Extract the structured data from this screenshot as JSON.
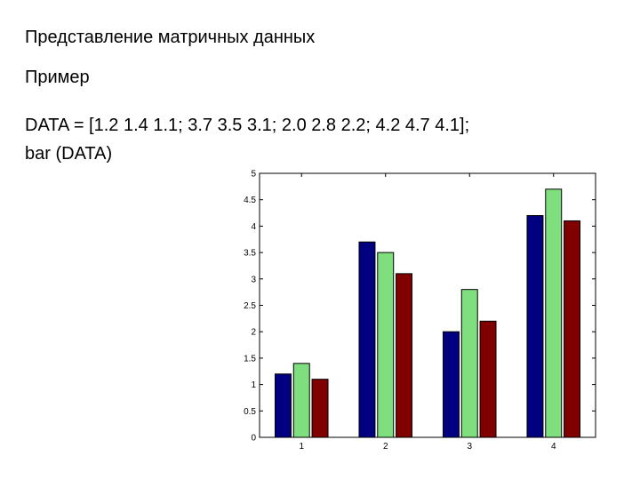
{
  "slide": {
    "title": "Представление матричных данных",
    "subtitle": "Пример",
    "code_line_1": "DATA = [1.2 1.4 1.1; 3.7 3.5 3.1; 2.0 2.8 2.2; 4.2 4.7 4.1];",
    "code_line_2": "bar (DATA)"
  },
  "chart_data": {
    "type": "bar",
    "categories": [
      "1",
      "2",
      "3",
      "4"
    ],
    "series": [
      {
        "values": [
          1.2,
          3.7,
          2.0,
          4.2
        ],
        "color": "#000080"
      },
      {
        "values": [
          1.4,
          3.5,
          2.8,
          4.7
        ],
        "color": "#7fdf7f"
      },
      {
        "values": [
          1.1,
          3.1,
          2.2,
          4.1
        ],
        "color": "#800000"
      }
    ],
    "title": "",
    "xlabel": "",
    "ylabel": "",
    "ylim": [
      0,
      5
    ],
    "yticks": [
      "0",
      "0.5",
      "1",
      "1.5",
      "2",
      "2.5",
      "3",
      "3.5",
      "4",
      "4.5",
      "5"
    ],
    "grid": false,
    "legend": "none"
  }
}
